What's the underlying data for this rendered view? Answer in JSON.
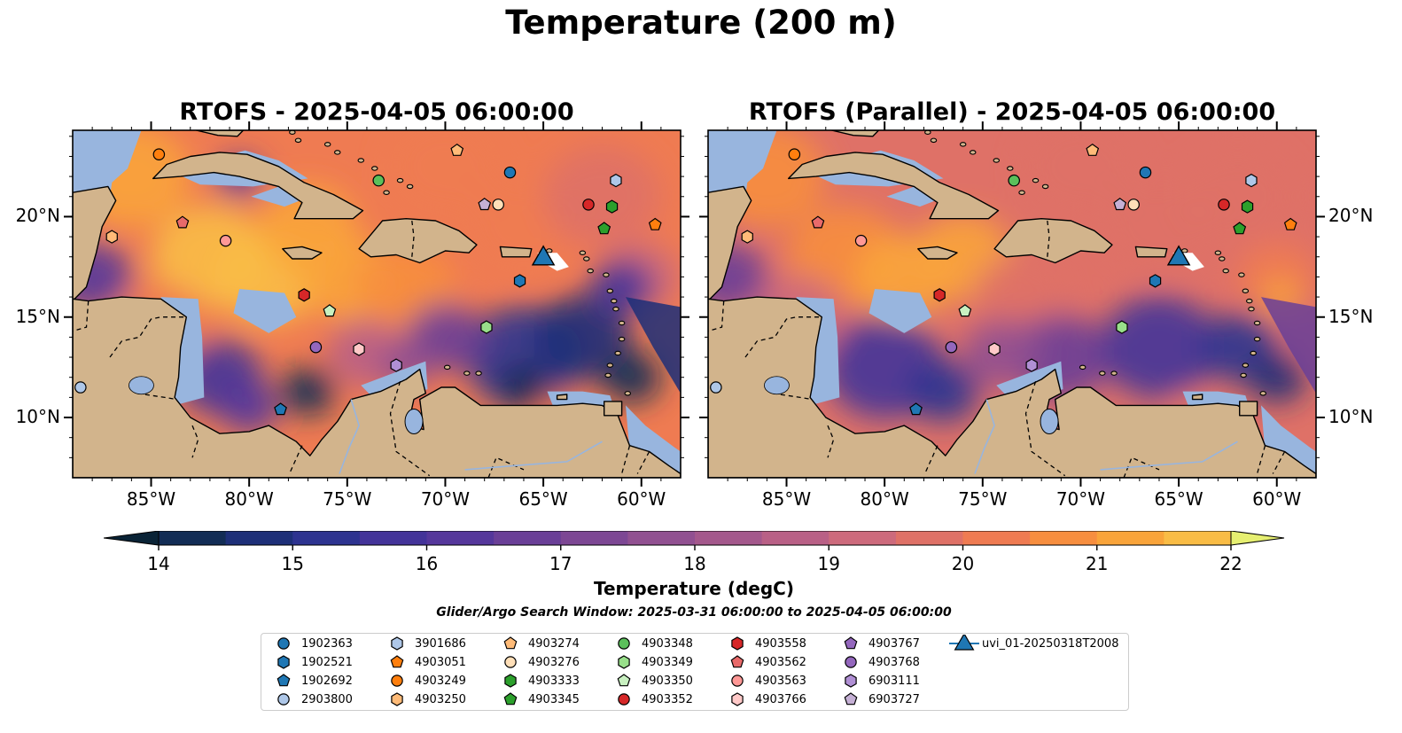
{
  "figure_title": "Temperature (200 m)",
  "panels": [
    {
      "title": "RTOFS - 2025-04-05 06:00:00"
    },
    {
      "title": "RTOFS (Parallel) - 2025-04-05 06:00:00"
    }
  ],
  "map_extent": {
    "lon_min": -89.0,
    "lon_max": -58.0,
    "lat_min": 7.0,
    "lat_max": 24.3
  },
  "x_ticks": [
    {
      "lon": -85,
      "label": "85°W"
    },
    {
      "lon": -80,
      "label": "80°W"
    },
    {
      "lon": -75,
      "label": "75°W"
    },
    {
      "lon": -70,
      "label": "70°W"
    },
    {
      "lon": -65,
      "label": "65°W"
    },
    {
      "lon": -60,
      "label": "60°W"
    }
  ],
  "y_ticks": [
    {
      "lat": 10,
      "label": "10°N"
    },
    {
      "lat": 15,
      "label": "15°N"
    },
    {
      "lat": 20,
      "label": "20°N"
    }
  ],
  "colorbar": {
    "label": "Temperature (degC)",
    "min": 14,
    "max": 22,
    "step": 0.5,
    "ticks": [
      "14",
      "15",
      "16",
      "17",
      "18",
      "19",
      "20",
      "21",
      "22"
    ],
    "extend": "both",
    "colormap": "thermal",
    "colors": [
      "#0a2336",
      "#122c55",
      "#1d2f78",
      "#2d3390",
      "#433399",
      "#55379b",
      "#6a3f97",
      "#7d4794",
      "#915091",
      "#a4588c",
      "#b96086",
      "#cd6a7c",
      "#df7167",
      "#ef7b52",
      "#f78e3f",
      "#f9a43a",
      "#f9bc45",
      "#f2d55c",
      "#e6ef71"
    ]
  },
  "search_window": "Glider/Argo Search Window: 2025-03-31 06:00:00 to 2025-04-05 06:00:00",
  "colors": {
    "land": "#d2b48c",
    "shallow": "#98b5de",
    "deep_ocean": "#0a2336",
    "glider_track": "#ffffff",
    "glider_marker": "#1f77b4"
  },
  "legend": [
    {
      "id": "1902363",
      "marker": "circle",
      "color": "#1f77b4"
    },
    {
      "id": "1902521",
      "marker": "hexagon",
      "color": "#1f77b4"
    },
    {
      "id": "1902692",
      "marker": "pentagon",
      "color": "#1f77b4"
    },
    {
      "id": "2903800",
      "marker": "circle",
      "color": "#aec7e8"
    },
    {
      "id": "3901686",
      "marker": "hexagon",
      "color": "#aec7e8"
    },
    {
      "id": "4903051",
      "marker": "pentagon",
      "color": "#ff7f0e"
    },
    {
      "id": "4903249",
      "marker": "circle",
      "color": "#ff7f0e"
    },
    {
      "id": "4903250",
      "marker": "hexagon",
      "color": "#ffbb78"
    },
    {
      "id": "4903274",
      "marker": "pentagon",
      "color": "#ffbb78"
    },
    {
      "id": "4903276",
      "marker": "circle",
      "color": "#ffdfb8"
    },
    {
      "id": "4903333",
      "marker": "hexagon",
      "color": "#2ca02c"
    },
    {
      "id": "4903345",
      "marker": "pentagon",
      "color": "#2ca02c"
    },
    {
      "id": "4903348",
      "marker": "circle",
      "color": "#5bc05b"
    },
    {
      "id": "4903349",
      "marker": "hexagon",
      "color": "#98df8a"
    },
    {
      "id": "4903350",
      "marker": "pentagon",
      "color": "#c8f0c0"
    },
    {
      "id": "4903352",
      "marker": "circle",
      "color": "#d62728"
    },
    {
      "id": "4903558",
      "marker": "hexagon",
      "color": "#d62728"
    },
    {
      "id": "4903562",
      "marker": "pentagon",
      "color": "#e86a6a"
    },
    {
      "id": "4903563",
      "marker": "circle",
      "color": "#ff9896"
    },
    {
      "id": "4903766",
      "marker": "hexagon",
      "color": "#ffc9c8"
    },
    {
      "id": "4903767",
      "marker": "pentagon",
      "color": "#9467bd"
    },
    {
      "id": "4903768",
      "marker": "circle",
      "color": "#9467bd"
    },
    {
      "id": "6903111",
      "marker": "hexagon",
      "color": "#b08fd4"
    },
    {
      "id": "6903727",
      "marker": "pentagon",
      "color": "#c5b0d5"
    },
    {
      "id": "uvi_01-20250318T2008",
      "marker": "triangle",
      "color": "#1f77b4"
    }
  ],
  "floats": [
    {
      "id": "4903249",
      "lon": -84.6,
      "lat": 23.1
    },
    {
      "id": "4903274",
      "lon": -69.4,
      "lat": 23.3
    },
    {
      "id": "1902363",
      "lon": -66.7,
      "lat": 22.2
    },
    {
      "id": "4903348",
      "lon": -73.4,
      "lat": 21.8
    },
    {
      "id": "3901686",
      "lon": -61.3,
      "lat": 21.8
    },
    {
      "id": "6903727",
      "lon": -68.0,
      "lat": 20.6
    },
    {
      "id": "4903276",
      "lon": -67.3,
      "lat": 20.6
    },
    {
      "id": "4903352",
      "lon": -62.7,
      "lat": 20.6
    },
    {
      "id": "4903333",
      "lon": -61.5,
      "lat": 20.5
    },
    {
      "id": "4903562",
      "lon": -83.4,
      "lat": 19.7
    },
    {
      "id": "4903051",
      "lon": -59.3,
      "lat": 19.6
    },
    {
      "id": "4903345",
      "lon": -61.9,
      "lat": 19.4
    },
    {
      "id": "4903250",
      "lon": -87.0,
      "lat": 19.0
    },
    {
      "id": "4903563",
      "lon": -81.2,
      "lat": 18.8
    },
    {
      "id": "1902521",
      "lon": -66.2,
      "lat": 16.8
    },
    {
      "id": "4903558",
      "lon": -77.2,
      "lat": 16.1
    },
    {
      "id": "4903350",
      "lon": -75.9,
      "lat": 15.3
    },
    {
      "id": "4903349",
      "lon": -67.9,
      "lat": 14.5
    },
    {
      "id": "4903768",
      "lon": -76.6,
      "lat": 13.5
    },
    {
      "id": "4903766",
      "lon": -74.4,
      "lat": 13.4
    },
    {
      "id": "6903111",
      "lon": -72.5,
      "lat": 12.6
    },
    {
      "id": "1902692",
      "lon": -78.4,
      "lat": 10.4
    },
    {
      "id": "2903800",
      "lon": -88.6,
      "lat": 11.5
    }
  ],
  "glider": {
    "id": "uvi_01-20250318T2008",
    "lon": -65.0,
    "lat": 18.0
  }
}
